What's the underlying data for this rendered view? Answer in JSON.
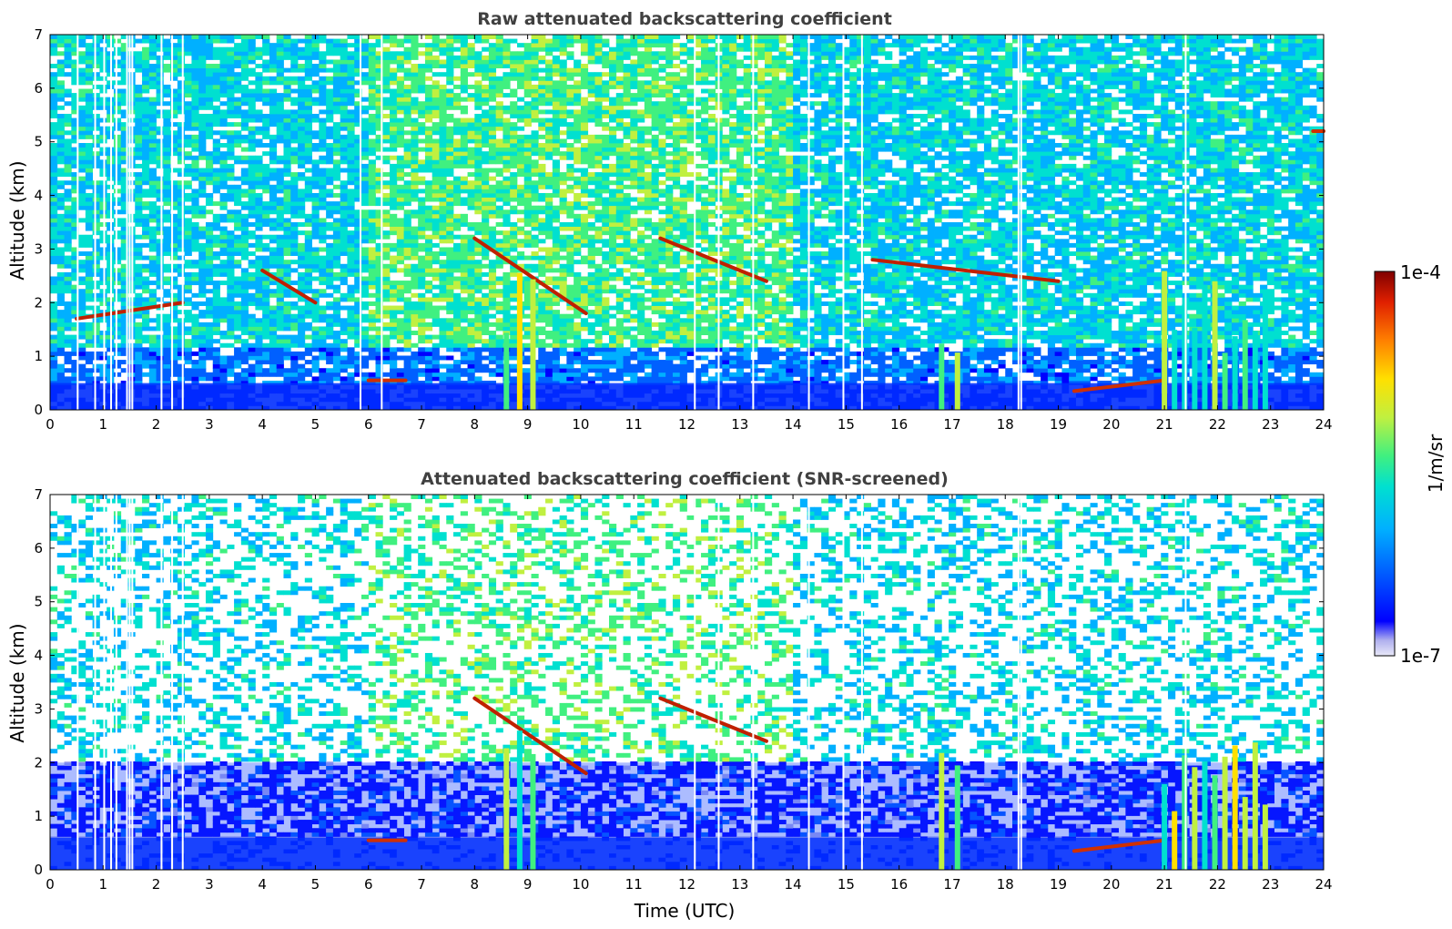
{
  "chart_data": [
    {
      "type": "heatmap",
      "title": "Raw attenuated backscattering coefficient",
      "xlabel": "",
      "ylabel": "Altitude (km)",
      "xlim": [
        0,
        24
      ],
      "ylim": [
        0,
        7
      ],
      "xticks": [
        "0",
        "1",
        "2",
        "3",
        "4",
        "5",
        "6",
        "7",
        "8",
        "9",
        "10",
        "11",
        "12",
        "13",
        "14",
        "15",
        "16",
        "17",
        "18",
        "19",
        "20",
        "21",
        "22",
        "23",
        "24"
      ],
      "yticks": [
        "0",
        "1",
        "2",
        "3",
        "4",
        "5",
        "6",
        "7"
      ],
      "screened": false,
      "gaps_hours": [
        0.52,
        0.85,
        1.02,
        1.15,
        1.25,
        1.45,
        1.5,
        1.55,
        2.1,
        2.3,
        2.5,
        5.85,
        6.25,
        12.15,
        12.6,
        13.25,
        14.3,
        14.95,
        15.3,
        18.25,
        18.3,
        21.4
      ],
      "features": [
        {
          "type": "surface_layer",
          "x": [
            0,
            24
          ],
          "top_km": 0.5
        },
        {
          "type": "aerosol_layer",
          "x": [
            6.0,
            6.7
          ],
          "y_km": 0.55
        },
        {
          "type": "aerosol_layer",
          "x": [
            19.3,
            21.0
          ],
          "y_km": [
            0.35,
            0.55
          ]
        },
        {
          "type": "cloud_streak",
          "x": [
            8.0,
            10.1
          ],
          "y_km": [
            3.2,
            1.8
          ]
        },
        {
          "type": "cloud_streak",
          "x": [
            0.5,
            2.5
          ],
          "y_km": [
            1.7,
            2.0
          ]
        },
        {
          "type": "cloud_streak",
          "x": [
            4.0,
            5.0
          ],
          "y_km": [
            2.6,
            2.0
          ]
        },
        {
          "type": "cloud_streak",
          "x": [
            11.5,
            13.5
          ],
          "y_km": [
            3.2,
            2.4
          ]
        },
        {
          "type": "cloud_streak",
          "x": [
            15.5,
            19.0
          ],
          "y_km": [
            2.8,
            2.4
          ]
        },
        {
          "type": "precipitation_shafts",
          "x": [
            8.6,
            9.1
          ]
        },
        {
          "type": "precipitation_shafts",
          "x": [
            16.8,
            17.1
          ]
        },
        {
          "type": "precipitation_shafts",
          "x": [
            21.0,
            22.9
          ]
        },
        {
          "type": "cloud_patch",
          "x": [
            23.8,
            24
          ],
          "y_km": 5.2
        }
      ]
    },
    {
      "type": "heatmap",
      "title": "Attenuated backscattering coefficient (SNR-screened)",
      "xlabel": "Time (UTC)",
      "ylabel": "Altitude (km)",
      "xlim": [
        0,
        24
      ],
      "ylim": [
        0,
        7
      ],
      "xticks": [
        "0",
        "1",
        "2",
        "3",
        "4",
        "5",
        "6",
        "7",
        "8",
        "9",
        "10",
        "11",
        "12",
        "13",
        "14",
        "15",
        "16",
        "17",
        "18",
        "19",
        "20",
        "21",
        "22",
        "23",
        "24"
      ],
      "yticks": [
        "0",
        "1",
        "2",
        "3",
        "4",
        "5",
        "6",
        "7"
      ],
      "screened": true,
      "gaps_hours": [
        0.52,
        0.85,
        1.02,
        1.15,
        1.25,
        1.45,
        1.5,
        1.55,
        2.1,
        2.3,
        2.5,
        12.15,
        12.6,
        13.25,
        14.3,
        14.95,
        15.3,
        18.25,
        18.3,
        21.4
      ],
      "features": [
        {
          "type": "surface_layer",
          "x": [
            0,
            24
          ],
          "top_km": 0.6
        },
        {
          "type": "boundary_layer_noise",
          "x": [
            0,
            24
          ],
          "y_km": [
            0.6,
            2.0
          ]
        },
        {
          "type": "aerosol_layer",
          "x": [
            6.0,
            6.7
          ],
          "y_km": 0.55
        },
        {
          "type": "aerosol_layer",
          "x": [
            19.3,
            21.0
          ],
          "y_km": [
            0.35,
            0.55
          ]
        },
        {
          "type": "cloud_streak",
          "x": [
            8.0,
            10.1
          ],
          "y_km": [
            3.2,
            1.8
          ]
        },
        {
          "type": "cloud_streak",
          "x": [
            11.5,
            13.5
          ],
          "y_km": [
            3.2,
            2.4
          ]
        },
        {
          "type": "precipitation_shafts",
          "x": [
            8.6,
            9.1
          ]
        },
        {
          "type": "precipitation_shafts",
          "x": [
            16.8,
            17.1
          ]
        },
        {
          "type": "precipitation_shafts",
          "x": [
            21.0,
            22.9
          ]
        }
      ]
    }
  ],
  "colorbar": {
    "label": "1/m/sr",
    "max_label": "1e-4",
    "min_label": "1e-7",
    "scale": "log",
    "range": [
      1e-07,
      0.0001
    ],
    "colors": [
      "#e8e8f8",
      "#b0b0ee",
      "#0000ff",
      "#0060ff",
      "#00b0ff",
      "#00e0d0",
      "#40f080",
      "#c0f040",
      "#ffe000",
      "#ff8000",
      "#e02000",
      "#800000"
    ]
  }
}
